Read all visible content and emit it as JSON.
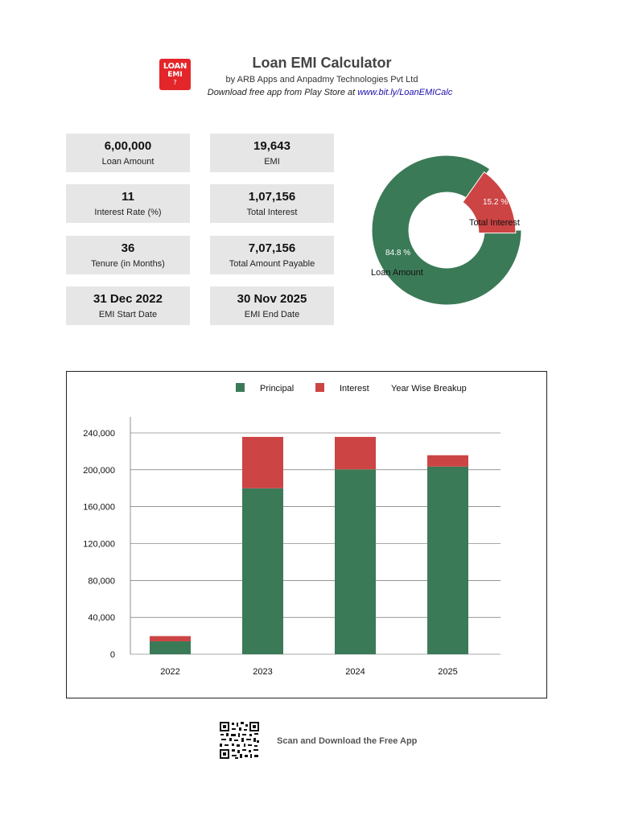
{
  "header": {
    "logo": {
      "line1": "LOAN",
      "line2": "EMI",
      "line3": "?"
    },
    "title": "Loan EMI Calculator",
    "subtitle": "by ARB Apps and Anpadmy Technologies Pvt Ltd",
    "download_text": "Download free app from Play Store at ",
    "download_link": "www.bit.ly/LoanEMICalc"
  },
  "cards": {
    "loan_amount": {
      "value": "6,00,000",
      "label": "Loan Amount"
    },
    "emi": {
      "value": "19,643",
      "label": "EMI"
    },
    "interest_rate": {
      "value": "11",
      "label": "Interest Rate (%)"
    },
    "total_interest": {
      "value": "1,07,156",
      "label": "Total Interest"
    },
    "tenure": {
      "value": "36",
      "label": "Tenure (in Months)"
    },
    "total_payable": {
      "value": "7,07,156",
      "label": "Total Amount Payable"
    },
    "start_date": {
      "value": "31 Dec 2022",
      "label": "EMI Start Date"
    },
    "end_date": {
      "value": "30 Nov 2025",
      "label": "EMI End Date"
    }
  },
  "chart_data": [
    {
      "type": "pie",
      "donut": true,
      "slices": [
        {
          "label": "Loan Amount",
          "value": 84.8,
          "display": "84.8 %",
          "color": "#3b7a57"
        },
        {
          "label": "Total Interest",
          "value": 15.2,
          "display": "15.2 %",
          "color": "#cc4444"
        }
      ]
    },
    {
      "type": "bar",
      "stacked": true,
      "title": "Year Wise Breakup",
      "categories": [
        "2022",
        "2023",
        "2024",
        "2025"
      ],
      "series": [
        {
          "name": "Principal",
          "color": "#3b7a57",
          "values": [
            14000,
            180000,
            200500,
            203500
          ]
        },
        {
          "name": "Interest",
          "color": "#cc4444",
          "values": [
            5643,
            55700,
            35200,
            12300
          ]
        }
      ],
      "yticks": [
        0,
        40000,
        80000,
        120000,
        160000,
        200000,
        240000
      ],
      "ytick_labels": [
        "0",
        "40,000",
        "80,000",
        "120,000",
        "160,000",
        "200,000",
        "240,000"
      ],
      "ylim": [
        0,
        240000
      ],
      "grid": true,
      "legend": "top"
    }
  ],
  "footer": {
    "scan_text": "Scan and Download the Free App"
  }
}
